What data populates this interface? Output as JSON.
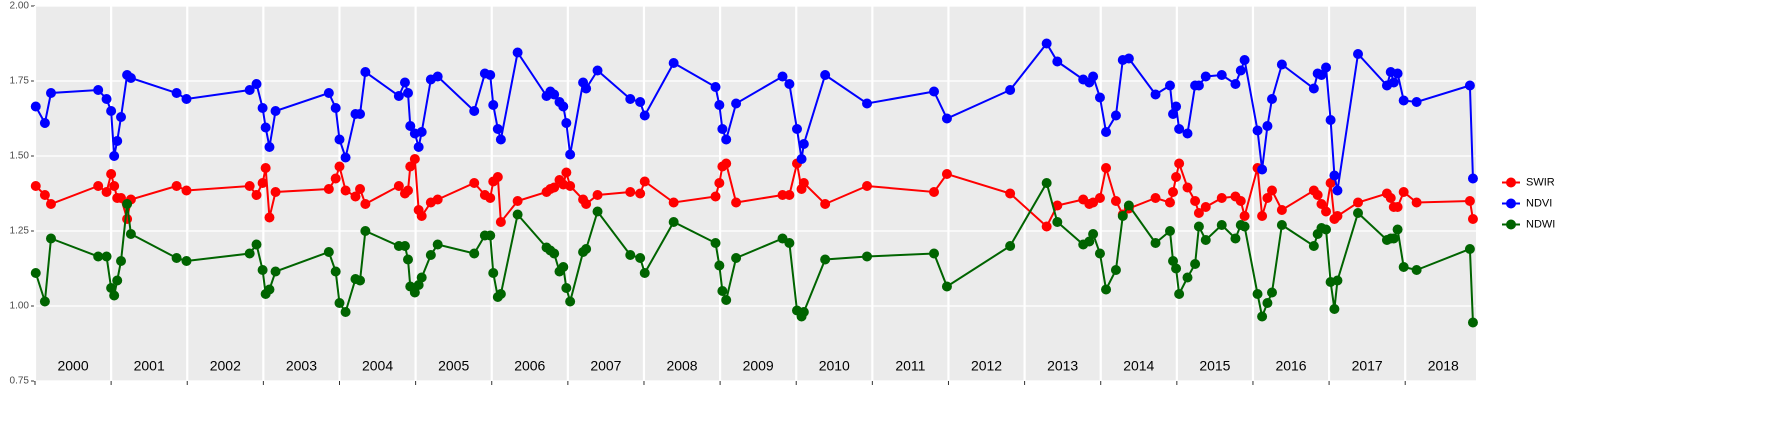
{
  "chart_data": {
    "type": "line",
    "x": [
      2000.01,
      2000.13,
      2000.21,
      2000.83,
      2000.94,
      2001.0,
      2001.04,
      2001.08,
      2001.13,
      2001.21,
      2001.26,
      2001.86,
      2001.99,
      2002.82,
      2002.91,
      2002.99,
      2003.03,
      2003.08,
      2003.16,
      2003.86,
      2003.95,
      2004.0,
      2004.08,
      2004.21,
      2004.27,
      2004.34,
      2004.78,
      2004.86,
      2004.9,
      2004.93,
      2004.99,
      2005.04,
      2005.08,
      2005.2,
      2005.29,
      2005.77,
      2005.91,
      2005.98,
      2006.02,
      2006.08,
      2006.12,
      2006.34,
      2006.72,
      2006.77,
      2006.82,
      2006.89,
      2006.94,
      2006.98,
      2007.03,
      2007.2,
      2007.24,
      2007.39,
      2007.82,
      2007.95,
      2008.01,
      2008.39,
      2008.94,
      2008.99,
      2009.03,
      2009.08,
      2009.21,
      2009.82,
      2009.91,
      2010.01,
      2010.07,
      2010.1,
      2010.38,
      2010.93,
      2011.81,
      2011.98,
      2012.81,
      2013.29,
      2013.43,
      2013.77,
      2013.85,
      2013.9,
      2013.99,
      2014.07,
      2014.2,
      2014.29,
      2014.37,
      2014.72,
      2014.91,
      2014.95,
      2014.99,
      2015.03,
      2015.14,
      2015.24,
      2015.29,
      2015.38,
      2015.59,
      2015.77,
      2015.84,
      2015.89,
      2016.06,
      2016.12,
      2016.19,
      2016.25,
      2016.38,
      2016.8,
      2016.85,
      2016.9,
      2016.96,
      2017.02,
      2017.07,
      2017.11,
      2017.38,
      2017.76,
      2017.81,
      2017.85,
      2017.9,
      2017.98,
      2018.15,
      2018.85,
      2018.89
    ],
    "series": [
      {
        "name": "SWIR",
        "color": "#ff0000",
        "values": [
          1.4,
          1.37,
          1.34,
          1.4,
          1.38,
          1.44,
          1.4,
          1.36,
          1.36,
          1.29,
          1.355,
          1.4,
          1.385,
          1.4,
          1.37,
          1.41,
          1.46,
          1.295,
          1.38,
          1.39,
          1.425,
          1.465,
          1.385,
          1.365,
          1.39,
          1.34,
          1.4,
          1.375,
          1.385,
          1.465,
          1.49,
          1.32,
          1.3,
          1.345,
          1.355,
          1.41,
          1.37,
          1.36,
          1.415,
          1.43,
          1.28,
          1.35,
          1.38,
          1.39,
          1.395,
          1.42,
          1.405,
          1.445,
          1.4,
          1.355,
          1.34,
          1.37,
          1.38,
          1.375,
          1.415,
          1.345,
          1.365,
          1.41,
          1.465,
          1.475,
          1.345,
          1.37,
          1.37,
          1.475,
          1.39,
          1.41,
          1.34,
          1.4,
          1.38,
          1.44,
          1.375,
          1.265,
          1.335,
          1.355,
          1.34,
          1.345,
          1.36,
          1.46,
          1.35,
          1.305,
          1.325,
          1.36,
          1.345,
          1.38,
          1.43,
          1.475,
          1.395,
          1.35,
          1.31,
          1.33,
          1.36,
          1.365,
          1.35,
          1.3,
          1.46,
          1.3,
          1.36,
          1.385,
          1.32,
          1.385,
          1.37,
          1.34,
          1.315,
          1.41,
          1.29,
          1.3,
          1.345,
          1.375,
          1.36,
          1.33,
          1.33,
          1.38,
          1.345,
          1.35,
          1.29
        ]
      },
      {
        "name": "NDVI",
        "color": "#0000ff",
        "values": [
          1.665,
          1.61,
          1.71,
          1.72,
          1.69,
          1.65,
          1.5,
          1.55,
          1.63,
          1.77,
          1.76,
          1.71,
          1.69,
          1.72,
          1.74,
          1.66,
          1.595,
          1.53,
          1.65,
          1.71,
          1.66,
          1.555,
          1.495,
          1.64,
          1.64,
          1.78,
          1.7,
          1.745,
          1.71,
          1.6,
          1.575,
          1.53,
          1.58,
          1.755,
          1.765,
          1.65,
          1.775,
          1.77,
          1.67,
          1.59,
          1.555,
          1.845,
          1.7,
          1.715,
          1.705,
          1.68,
          1.665,
          1.61,
          1.505,
          1.745,
          1.725,
          1.785,
          1.69,
          1.68,
          1.635,
          1.81,
          1.73,
          1.67,
          1.59,
          1.555,
          1.675,
          1.765,
          1.74,
          1.59,
          1.49,
          1.54,
          1.77,
          1.675,
          1.715,
          1.625,
          1.72,
          1.875,
          1.815,
          1.755,
          1.745,
          1.765,
          1.695,
          1.58,
          1.635,
          1.82,
          1.825,
          1.705,
          1.735,
          1.64,
          1.665,
          1.59,
          1.575,
          1.735,
          1.735,
          1.765,
          1.77,
          1.74,
          1.785,
          1.82,
          1.585,
          1.455,
          1.6,
          1.69,
          1.805,
          1.725,
          1.775,
          1.77,
          1.795,
          1.62,
          1.435,
          1.385,
          1.84,
          1.735,
          1.78,
          1.745,
          1.775,
          1.685,
          1.68,
          1.735,
          1.425
        ]
      },
      {
        "name": "NDWI",
        "color": "#006400",
        "values": [
          1.11,
          1.015,
          1.225,
          1.165,
          1.165,
          1.06,
          1.035,
          1.085,
          1.15,
          1.34,
          1.24,
          1.16,
          1.15,
          1.175,
          1.205,
          1.12,
          1.04,
          1.055,
          1.115,
          1.18,
          1.115,
          1.01,
          0.98,
          1.09,
          1.085,
          1.25,
          1.2,
          1.2,
          1.155,
          1.065,
          1.045,
          1.07,
          1.095,
          1.17,
          1.205,
          1.175,
          1.235,
          1.235,
          1.11,
          1.03,
          1.04,
          1.305,
          1.195,
          1.185,
          1.175,
          1.115,
          1.13,
          1.06,
          1.015,
          1.18,
          1.19,
          1.315,
          1.17,
          1.16,
          1.11,
          1.28,
          1.21,
          1.135,
          1.05,
          1.02,
          1.16,
          1.225,
          1.21,
          0.985,
          0.965,
          0.98,
          1.155,
          1.165,
          1.175,
          1.065,
          1.2,
          1.41,
          1.28,
          1.205,
          1.215,
          1.24,
          1.175,
          1.055,
          1.12,
          1.3,
          1.335,
          1.21,
          1.25,
          1.15,
          1.125,
          1.04,
          1.095,
          1.14,
          1.265,
          1.22,
          1.27,
          1.225,
          1.27,
          1.265,
          1.04,
          0.965,
          1.01,
          1.045,
          1.27,
          1.2,
          1.24,
          1.26,
          1.255,
          1.08,
          0.99,
          1.085,
          1.31,
          1.22,
          1.225,
          1.225,
          1.255,
          1.13,
          1.12,
          1.19,
          0.945
        ]
      }
    ],
    "xlim": [
      2000,
      2018.93
    ],
    "xticks": [
      2000,
      2001,
      2002,
      2003,
      2004,
      2005,
      2006,
      2007,
      2008,
      2009,
      2010,
      2011,
      2012,
      2013,
      2014,
      2015,
      2016,
      2017,
      2018
    ],
    "ylim": [
      0.75,
      2.0
    ],
    "yticks": [
      0.75,
      {
        "value": 1.0,
        "label": "1.00"
      },
      1.25,
      {
        "value": 1.5,
        "label": "1.50"
      },
      1.75,
      {
        "value": 2.0,
        "label": "2.00"
      }
    ],
    "grid": true,
    "legend": "right"
  }
}
